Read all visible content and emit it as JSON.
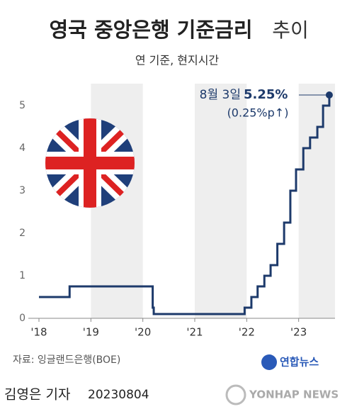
{
  "chart_data": {
    "type": "step",
    "title": "영국 중앙은행 기준금리",
    "title_suffix": "추이",
    "subtitle": "연 기준, 현지시간",
    "x": [
      2018.0,
      2018.59,
      2020.19,
      2020.21,
      2021.96,
      2022.09,
      2022.21,
      2022.34,
      2022.46,
      2022.59,
      2022.72,
      2022.84,
      2022.95,
      2023.09,
      2023.22,
      2023.36,
      2023.47,
      2023.59
    ],
    "series": [
      {
        "name": "기준금리",
        "color": "#1d3a6b",
        "values": [
          0.5,
          0.75,
          0.25,
          0.1,
          0.25,
          0.5,
          0.75,
          1.0,
          1.25,
          1.75,
          2.25,
          3.0,
          3.5,
          4.0,
          4.25,
          4.5,
          5.0,
          5.25
        ]
      }
    ],
    "xlim": [
      2018,
      2023.7
    ],
    "xticks": [
      {
        "value": 2018,
        "label": "'18"
      },
      {
        "value": 2019,
        "label": "'19"
      },
      {
        "value": 2020,
        "label": "'20"
      },
      {
        "value": 2021,
        "label": "'21"
      },
      {
        "value": 2022,
        "label": "'22"
      },
      {
        "value": 2023,
        "label": "'23"
      }
    ],
    "ylim": [
      0,
      5.25
    ],
    "yticks": [
      0,
      1,
      2,
      3,
      4,
      5
    ],
    "grid": false,
    "annotation": {
      "date": "8월 3일",
      "value_label": "5.25%",
      "change": "(0.25%p↑)"
    },
    "source": "자료: 잉글랜드은행(BOE)",
    "logo": "연합뉴스",
    "byline": "김영은 기자",
    "date_stamp": "20230804",
    "watermark": "YONHAP NEWS"
  }
}
